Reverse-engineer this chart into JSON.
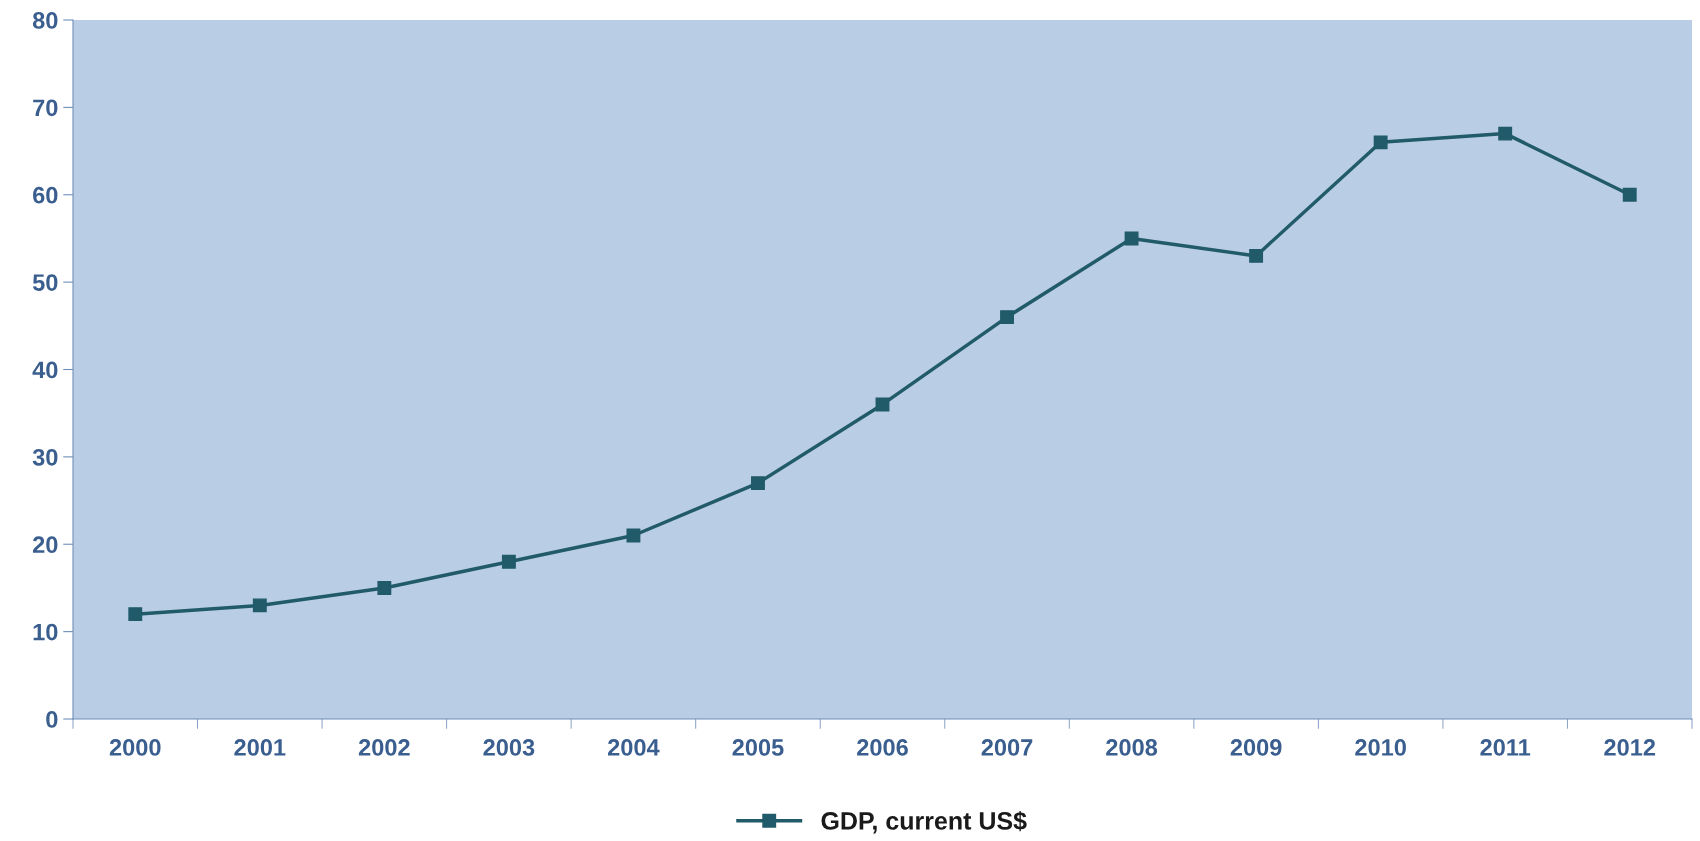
{
  "chart_data": {
    "type": "line",
    "categories": [
      "2000",
      "2001",
      "2002",
      "2003",
      "2004",
      "2005",
      "2006",
      "2007",
      "2008",
      "2009",
      "2010",
      "2011",
      "2012"
    ],
    "series": [
      {
        "name": "GDP, current US$",
        "color": "#215b6a",
        "values": [
          12,
          13,
          15,
          18,
          21,
          27,
          36,
          46,
          55,
          53,
          66,
          67,
          60
        ]
      }
    ],
    "ylim": [
      0,
      80
    ],
    "yticks": [
      0,
      10,
      20,
      30,
      40,
      50,
      60,
      70,
      80
    ],
    "grid": false,
    "legend": "bottom",
    "marker": "square",
    "line_style": "solid"
  }
}
